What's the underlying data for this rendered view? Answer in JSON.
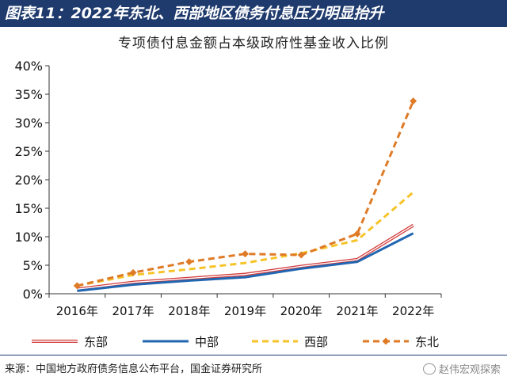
{
  "header": {
    "title": "图表11：2022年东北、西部地区债务付息压力明显抬升"
  },
  "source": "来源：中国地方政府债务信息公布平台，国金证券研究所",
  "watermark": "赵伟宏观探索",
  "chart_data": {
    "type": "line",
    "title": "专项债付息金额占本级政府性基金收入比例",
    "categories": [
      "2016年",
      "2017年",
      "2018年",
      "2019年",
      "2020年",
      "2021年",
      "2022年"
    ],
    "y_ticks": [
      "0%",
      "5%",
      "10%",
      "15%",
      "20%",
      "25%",
      "30%",
      "35%",
      "40%"
    ],
    "ylim": [
      0,
      40
    ],
    "y_unit": "%",
    "grid": false,
    "legend_position": "bottom",
    "series": [
      {
        "name": "东部",
        "values": [
          0.8,
          2.0,
          2.7,
          3.4,
          4.8,
          6.0,
          12.0
        ],
        "color": "#d23a3a",
        "style": "double"
      },
      {
        "name": "中部",
        "values": [
          0.5,
          1.6,
          2.3,
          2.9,
          4.4,
          5.6,
          10.6
        ],
        "color": "#2166b1",
        "style": "solid"
      },
      {
        "name": "西部",
        "values": [
          1.4,
          3.3,
          4.3,
          5.4,
          7.1,
          9.4,
          17.8
        ],
        "color": "#f6c428",
        "style": "dashed"
      },
      {
        "name": "东北",
        "values": [
          1.4,
          3.7,
          5.6,
          7.0,
          6.8,
          10.5,
          33.8
        ],
        "color": "#df7a26",
        "style": "dashed-diamond"
      }
    ]
  }
}
